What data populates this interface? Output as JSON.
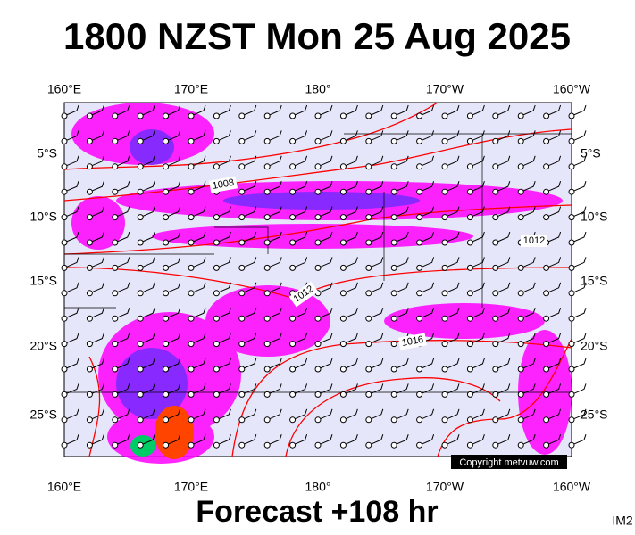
{
  "header": {
    "title": "1800 NZST Mon 25 Aug 2025"
  },
  "map": {
    "top_labels": [
      "160°E",
      "170°E",
      "180°",
      "170°W",
      "160°W"
    ],
    "bottom_labels": [
      "160°E",
      "170°E",
      "180°",
      "170°W",
      "160°W"
    ],
    "left_labels": [
      "5°S",
      "10°S",
      "15°S",
      "20°S",
      "25°S"
    ],
    "right_labels": [
      "5°S",
      "10°S",
      "15°S",
      "20°S",
      "25°S"
    ],
    "isobar_labels": [
      "1008",
      "1012",
      "1012",
      "1016"
    ],
    "copyright": "Copyright metvuw.com"
  },
  "footer": {
    "forecast": "Forecast +108 hr",
    "code": "IM2"
  }
}
